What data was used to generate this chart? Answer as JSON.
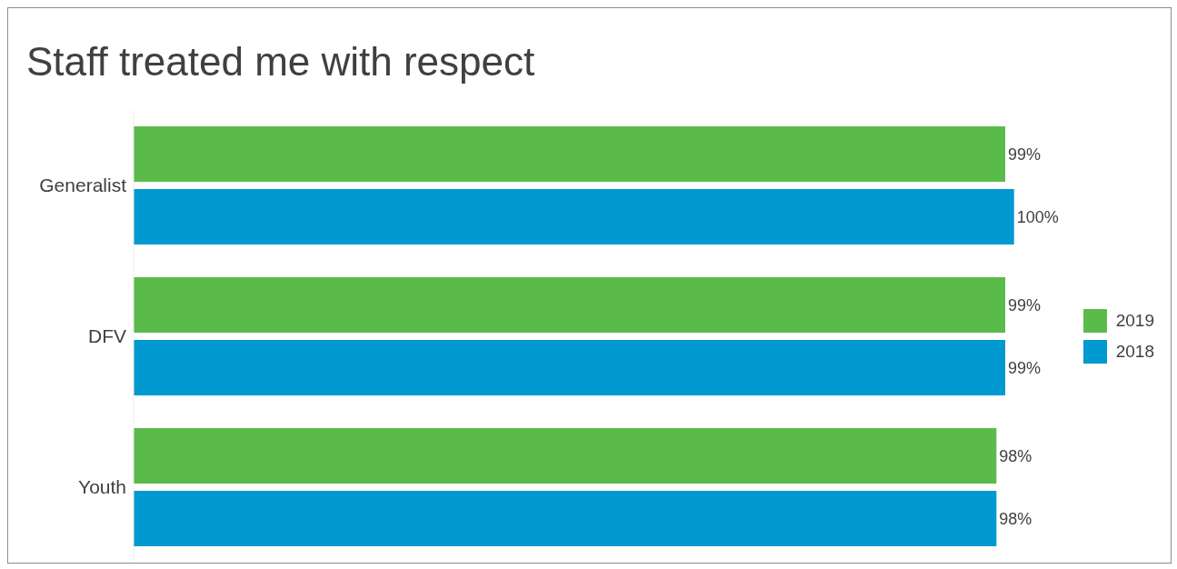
{
  "chart_data": {
    "type": "bar",
    "orientation": "horizontal",
    "title": "Staff treated me with respect",
    "categories": [
      "Generalist",
      "DFV",
      "Youth"
    ],
    "series": [
      {
        "name": "2019",
        "color": "#5bbb4a",
        "values": [
          99,
          99,
          98
        ],
        "value_labels": [
          "99%",
          "99%",
          "98%"
        ]
      },
      {
        "name": "2018",
        "color": "#0099d0",
        "values": [
          100,
          99,
          98
        ],
        "value_labels": [
          "100%",
          "99%",
          "98%"
        ]
      }
    ],
    "legend": "right",
    "grid": false
  }
}
